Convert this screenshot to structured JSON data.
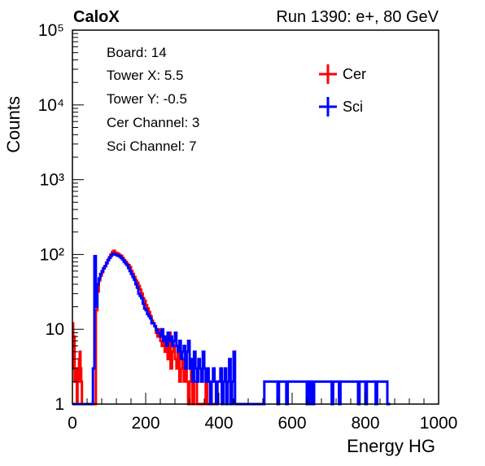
{
  "header": {
    "left": "CaloX",
    "right": "Run 1390: e+, 80 GeV"
  },
  "info": [
    "Board: 14",
    "Tower X: 5.5",
    "Tower Y: -0.5",
    "Cer Channel: 3",
    "Sci Channel: 7"
  ],
  "legend": [
    {
      "label": "Cer",
      "color": "#ff0000"
    },
    {
      "label": "Sci",
      "color": "#0000ff"
    }
  ],
  "chart_data": {
    "type": "line",
    "xlabel": "Energy HG",
    "ylabel": "Counts",
    "xlim": [
      0,
      1000
    ],
    "ylim": [
      1,
      100000
    ],
    "log_y": true,
    "grid": false,
    "legend_position": "top-right",
    "x_ticks": [
      "0",
      "200",
      "400",
      "600",
      "800",
      "1000"
    ],
    "y_ticks": [
      "1",
      "10",
      "10²",
      "10³",
      "10⁴",
      "10⁵"
    ],
    "series": [
      {
        "name": "Cer",
        "color": "#ff0000",
        "x": [
          0,
          2,
          4,
          6,
          8,
          10,
          12,
          14,
          16,
          18,
          20,
          22,
          24,
          26,
          28,
          30,
          32,
          34,
          36,
          38,
          40,
          44,
          48,
          52,
          56,
          60,
          64,
          68,
          72,
          76,
          80,
          84,
          88,
          92,
          96,
          100,
          104,
          108,
          112,
          116,
          120,
          124,
          128,
          132,
          136,
          140,
          144,
          148,
          152,
          156,
          160,
          164,
          168,
          172,
          176,
          180,
          184,
          188,
          192,
          196,
          200,
          204,
          208,
          212,
          216,
          220,
          224,
          228,
          232,
          236,
          240,
          244,
          248,
          252,
          256,
          260,
          264,
          268,
          272,
          276,
          280,
          284,
          288,
          292,
          296,
          300,
          304,
          308,
          312,
          316,
          320,
          324,
          328,
          332,
          336,
          340,
          344,
          348,
          352,
          356,
          360,
          364,
          368,
          372,
          376,
          380,
          384,
          388,
          392,
          396
        ],
        "y": [
          12,
          3,
          8,
          2,
          3,
          2,
          1,
          3,
          2,
          4,
          5,
          3,
          2,
          1,
          1,
          1,
          1,
          1,
          1,
          1,
          1,
          1,
          1,
          1,
          1,
          1,
          18,
          32,
          45,
          52,
          58,
          65,
          70,
          78,
          85,
          92,
          100,
          108,
          112,
          106,
          104,
          102,
          98,
          96,
          90,
          84,
          80,
          75,
          72,
          68,
          60,
          55,
          50,
          45,
          42,
          38,
          34,
          30,
          26,
          24,
          21,
          19,
          17,
          15,
          13,
          12,
          11,
          9,
          8,
          10,
          7,
          6,
          8,
          5,
          6,
          4,
          9,
          3,
          5,
          6,
          4,
          3,
          5,
          2,
          3,
          4,
          2,
          3,
          2,
          1,
          2,
          3,
          1,
          2,
          2,
          1,
          1,
          1,
          1,
          1,
          1,
          2,
          1,
          1,
          1,
          1,
          1,
          1,
          1,
          1
        ]
      },
      {
        "name": "Sci",
        "color": "#0000ff",
        "x": [
          0,
          4,
          8,
          12,
          16,
          20,
          24,
          28,
          32,
          36,
          40,
          44,
          48,
          52,
          56,
          60,
          64,
          68,
          72,
          76,
          80,
          84,
          88,
          92,
          96,
          100,
          104,
          108,
          112,
          116,
          120,
          124,
          128,
          132,
          136,
          140,
          144,
          148,
          152,
          156,
          160,
          164,
          168,
          172,
          176,
          180,
          184,
          188,
          192,
          196,
          200,
          204,
          208,
          212,
          216,
          220,
          224,
          228,
          232,
          236,
          240,
          244,
          248,
          252,
          256,
          260,
          264,
          268,
          272,
          276,
          280,
          284,
          288,
          292,
          296,
          300,
          304,
          308,
          312,
          316,
          320,
          324,
          328,
          332,
          336,
          340,
          344,
          348,
          352,
          356,
          360,
          364,
          368,
          372,
          376,
          380,
          384,
          388,
          392,
          396,
          400,
          404,
          408,
          412,
          416,
          420,
          424,
          428,
          432,
          436,
          440,
          444,
          520,
          524,
          560,
          564,
          584,
          588,
          640,
          644,
          648,
          652,
          656,
          660,
          708,
          712,
          728,
          732,
          780,
          784,
          800,
          804,
          828,
          832,
          860,
          864
        ],
        "y": [
          1,
          1,
          1,
          1,
          1,
          1,
          1,
          1,
          1,
          1,
          1,
          1,
          1,
          1,
          3,
          95,
          20,
          40,
          48,
          55,
          60,
          66,
          70,
          76,
          84,
          90,
          96,
          100,
          102,
          100,
          98,
          96,
          94,
          90,
          86,
          80,
          76,
          72,
          66,
          60,
          55,
          50,
          46,
          40,
          36,
          30,
          28,
          26,
          22,
          19,
          18,
          16,
          15,
          14,
          12,
          12,
          11,
          10,
          9,
          9,
          8,
          10,
          7,
          8,
          6,
          9,
          7,
          8,
          6,
          7,
          9,
          6,
          5,
          7,
          4,
          5,
          6,
          3,
          5,
          7,
          3,
          4,
          2,
          5,
          3,
          2,
          4,
          3,
          2,
          5,
          3,
          2,
          3,
          2,
          1,
          2,
          3,
          2,
          1,
          2,
          2,
          3,
          1,
          2,
          3,
          1,
          2,
          4,
          1,
          2,
          5,
          1,
          1,
          2,
          1,
          2,
          1,
          2,
          1,
          2,
          1,
          2,
          1,
          2,
          1,
          2,
          1,
          2,
          1,
          2,
          1,
          2,
          1,
          2,
          1,
          1
        ]
      }
    ]
  }
}
